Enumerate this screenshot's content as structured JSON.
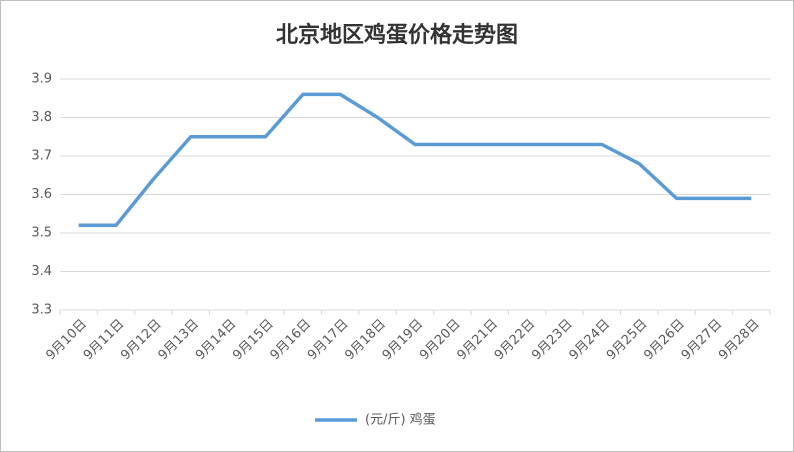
{
  "chart_data": {
    "type": "line",
    "title": "北京地区鸡蛋价格走势图",
    "categories": [
      "9月10日",
      "9月11日",
      "9月12日",
      "9月13日",
      "9月14日",
      "9月15日",
      "9月16日",
      "9月17日",
      "9月18日",
      "9月19日",
      "9月20日",
      "9月21日",
      "9月22日",
      "9月23日",
      "9月24日",
      "9月25日",
      "9月26日",
      "9月27日",
      "9月28日"
    ],
    "series": [
      {
        "name": "(元/斤) 鸡蛋",
        "color": "#5b9bd5",
        "values": [
          3.52,
          3.52,
          3.64,
          3.75,
          3.75,
          3.75,
          3.86,
          3.86,
          3.8,
          3.73,
          3.73,
          3.73,
          3.73,
          3.73,
          3.73,
          3.68,
          3.59,
          3.59,
          3.59
        ]
      }
    ],
    "ylim": [
      3.3,
      3.9
    ],
    "yticks": [
      3.3,
      3.4,
      3.5,
      3.6,
      3.7,
      3.8,
      3.9
    ],
    "grid": true,
    "legend": "bottom"
  }
}
